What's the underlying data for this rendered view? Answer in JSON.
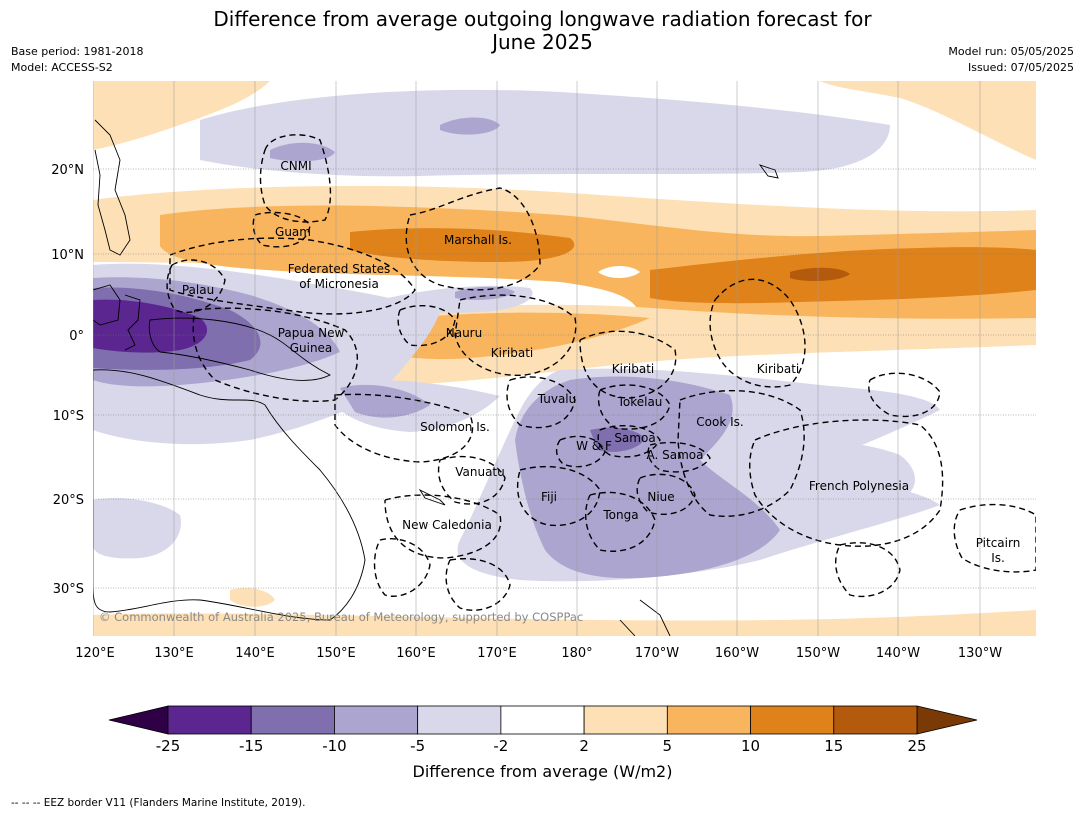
{
  "title_line1": "Difference from average outgoing longwave radiation forecast for",
  "title_line2": "June 2025",
  "meta_left": [
    "Base period: 1981-2018",
    "Model: ACCESS-S2"
  ],
  "meta_right": [
    "Model run: 05/05/2025",
    "Issued: 07/05/2025"
  ],
  "copyright": "© Commonwealth of Australia 2025, Bureau of Meteorology, supported by COSPPac",
  "lon_ticks": [
    "120°E",
    "130°E",
    "140°E",
    "150°E",
    "160°E",
    "170°E",
    "180°",
    "170°W",
    "160°W",
    "150°W",
    "140°W",
    "130°W"
  ],
  "lat_ticks": [
    "20°N",
    "10°N",
    "0°",
    "10°S",
    "20°S",
    "30°S"
  ],
  "regions": [
    {
      "name": "CNMI",
      "lines": [
        "CNMI"
      ]
    },
    {
      "name": "Guam",
      "lines": [
        "Guam"
      ]
    },
    {
      "name": "Marshall Is.",
      "lines": [
        "Marshall Is."
      ]
    },
    {
      "name": "Federated States of Micronesia",
      "lines": [
        "Federated States",
        "of Micronesia"
      ]
    },
    {
      "name": "Palau",
      "lines": [
        "Palau"
      ]
    },
    {
      "name": "Papua New Guinea",
      "lines": [
        "Papua New",
        "Guinea"
      ]
    },
    {
      "name": "Nauru",
      "lines": [
        "Nauru"
      ]
    },
    {
      "name": "Kiribati",
      "lines": [
        "Kiribati"
      ]
    },
    {
      "name": "Kiribati",
      "lines": [
        "Kiribati"
      ]
    },
    {
      "name": "Kiribati",
      "lines": [
        "Kiribati"
      ]
    },
    {
      "name": "Tuvalu",
      "lines": [
        "Tuvalu"
      ]
    },
    {
      "name": "Tokelau",
      "lines": [
        "Tokelau"
      ]
    },
    {
      "name": "Cook Is.",
      "lines": [
        "Cook Is."
      ]
    },
    {
      "name": "Solomon Is.",
      "lines": [
        "Solomon Is."
      ]
    },
    {
      "name": "Samoa",
      "lines": [
        "Samoa"
      ]
    },
    {
      "name": "W & F",
      "lines": [
        "W & F"
      ]
    },
    {
      "name": "A. Samoa",
      "lines": [
        "A. Samoa"
      ]
    },
    {
      "name": "Vanuatu",
      "lines": [
        "Vanuatu"
      ]
    },
    {
      "name": "Fiji",
      "lines": [
        "Fiji"
      ]
    },
    {
      "name": "Niue",
      "lines": [
        "Niue"
      ]
    },
    {
      "name": "French Polynesia",
      "lines": [
        "French Polynesia"
      ]
    },
    {
      "name": "Tonga",
      "lines": [
        "Tonga"
      ]
    },
    {
      "name": "New Caledonia",
      "lines": [
        "New Caledonia"
      ]
    },
    {
      "name": "Pitcairn Is.",
      "lines": [
        "Pitcairn",
        "Is."
      ]
    }
  ],
  "colorbar": {
    "ticks": [
      "-25",
      "-15",
      "-10",
      "-5",
      "-2",
      "2",
      "5",
      "10",
      "15",
      "25"
    ],
    "colors": [
      "#5b2690",
      "#7f6fae",
      "#aca5cf",
      "#d8d8ea",
      "#ffffff",
      "#fde0b5",
      "#f9b55e",
      "#e0821a",
      "#b45a0c"
    ],
    "under_color": "#2f0045",
    "over_color": "#7a3a06",
    "label": "Difference from average (W/m2)"
  },
  "footnote": "-- -- -- EEZ border V11 (Flanders Marine Institute, 2019)."
}
